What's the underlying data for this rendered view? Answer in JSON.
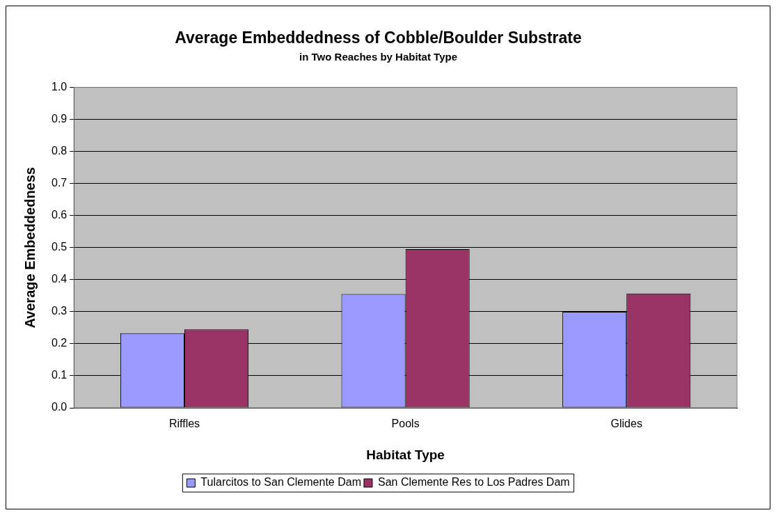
{
  "chart_data": {
    "type": "bar",
    "title": "Average Embeddedness of Cobble/Boulder Substrate",
    "subtitle": "in Two Reaches by Habitat Type",
    "xlabel": "Habitat Type",
    "ylabel": "Average Embeddedness",
    "categories": [
      "Riffles",
      "Pools",
      "Glides"
    ],
    "series": [
      {
        "name": "Tularcitos to San Clemente Dam",
        "color": "#9999ff",
        "values": [
          0.233,
          0.355,
          0.3
        ]
      },
      {
        "name": "San Clemente Res to Los Padres Dam",
        "color": "#993366",
        "values": [
          0.245,
          0.495,
          0.357
        ]
      }
    ],
    "ylim": [
      0,
      1
    ],
    "yticks": [
      {
        "value": 0,
        "label": "0.0"
      },
      {
        "value": 0.1,
        "label": "0.1"
      },
      {
        "value": 0.2,
        "label": "0.2"
      },
      {
        "value": 0.3,
        "label": "0.3"
      },
      {
        "value": 0.4,
        "label": "0.4"
      },
      {
        "value": 0.5,
        "label": "0.5"
      },
      {
        "value": 0.6,
        "label": "0.6"
      },
      {
        "value": 0.7,
        "label": "0.7"
      },
      {
        "value": 0.8,
        "label": "0.8"
      },
      {
        "value": 0.9,
        "label": "0.9"
      },
      {
        "value": 1,
        "label": "1.0"
      }
    ],
    "grid": "y",
    "legend": "bottom"
  }
}
